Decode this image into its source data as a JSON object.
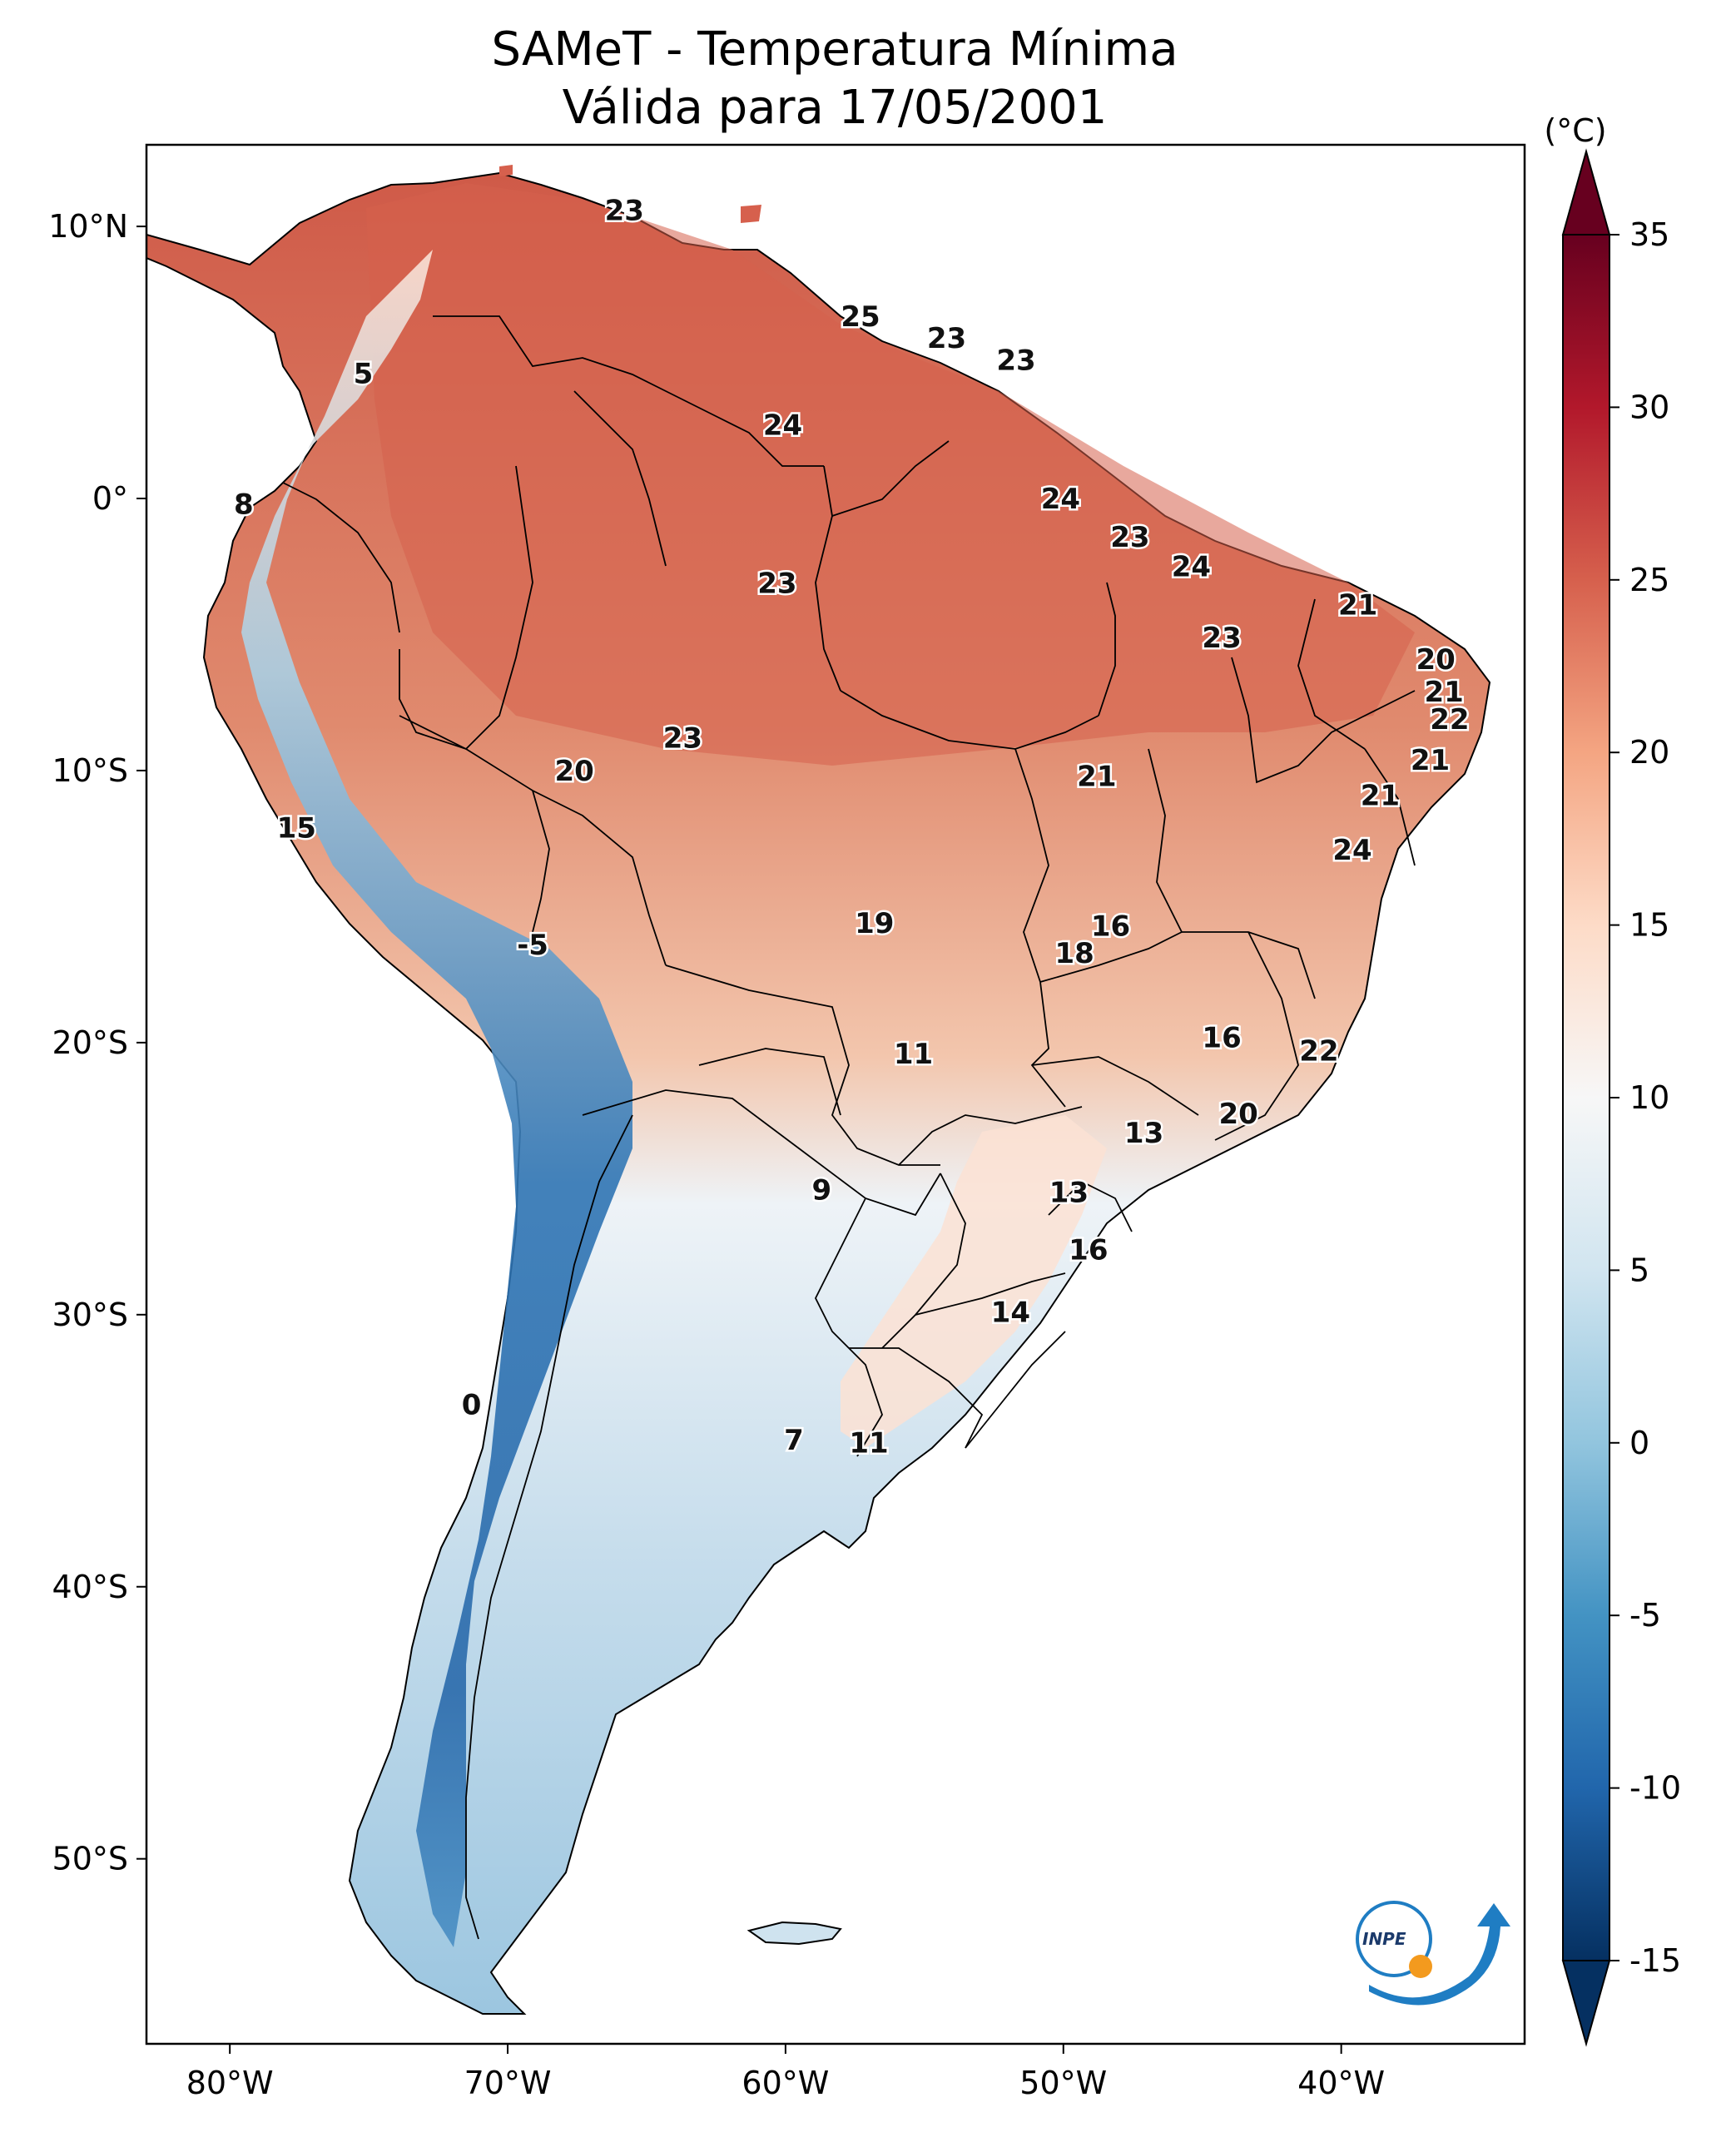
{
  "title": {
    "line1": "SAMeT - Temperatura Mínima",
    "line2": "Válida para 17/05/2001"
  },
  "colorbar": {
    "unit_label": "(°C)",
    "min": -15,
    "max": 35,
    "ticks": [
      -15,
      -10,
      -5,
      0,
      5,
      10,
      15,
      20,
      25,
      30,
      35
    ],
    "tick_labels": [
      "-15",
      "-10",
      "-5",
      "0",
      "5",
      "10",
      "15",
      "20",
      "25",
      "30",
      "35"
    ],
    "colors": [
      "#053061",
      "#2166ac",
      "#4393c3",
      "#92c5de",
      "#d1e5f0",
      "#f7f7f7",
      "#fddbc7",
      "#f4a582",
      "#d6604d",
      "#b2182b",
      "#67001f"
    ]
  },
  "map": {
    "lon_range": [
      -83,
      -33.4
    ],
    "lat_range": [
      -56.8,
      13
    ],
    "lon_ticks": [
      {
        "value": -80,
        "label": "80°W"
      },
      {
        "value": -70,
        "label": "70°W"
      },
      {
        "value": -60,
        "label": "60°W"
      },
      {
        "value": -50,
        "label": "50°W"
      },
      {
        "value": -40,
        "label": "40°W"
      }
    ],
    "lat_ticks": [
      {
        "value": 10,
        "label": "10°N"
      },
      {
        "value": 0,
        "label": "0°"
      },
      {
        "value": -10,
        "label": "10°S"
      },
      {
        "value": -20,
        "label": "20°S"
      },
      {
        "value": -30,
        "label": "30°S"
      },
      {
        "value": -40,
        "label": "40°S"
      },
      {
        "value": -50,
        "label": "50°S"
      }
    ]
  },
  "station_labels": [
    {
      "text": "23",
      "lon": -65.8,
      "lat": 10.6
    },
    {
      "text": "5",
      "lon": -75.2,
      "lat": 4.6
    },
    {
      "text": "8",
      "lon": -79.5,
      "lat": -0.2
    },
    {
      "text": "25",
      "lon": -57.3,
      "lat": 6.7
    },
    {
      "text": "23",
      "lon": -54.2,
      "lat": 5.9
    },
    {
      "text": "23",
      "lon": -51.7,
      "lat": 5.1
    },
    {
      "text": "24",
      "lon": -60.1,
      "lat": 2.7
    },
    {
      "text": "24",
      "lon": -50.1,
      "lat": 0
    },
    {
      "text": "23",
      "lon": -47.6,
      "lat": -1.4
    },
    {
      "text": "24",
      "lon": -45.4,
      "lat": -2.5
    },
    {
      "text": "23",
      "lon": -60.3,
      "lat": -3.1
    },
    {
      "text": "21",
      "lon": -39.4,
      "lat": -3.9
    },
    {
      "text": "23",
      "lon": -44.3,
      "lat": -5.1
    },
    {
      "text": "20",
      "lon": -36.6,
      "lat": -5.9
    },
    {
      "text": "21",
      "lon": -36.3,
      "lat": -7.1
    },
    {
      "text": "22",
      "lon": -36.1,
      "lat": -8.1
    },
    {
      "text": "23",
      "lon": -63.7,
      "lat": -8.8
    },
    {
      "text": "20",
      "lon": -67.6,
      "lat": -10
    },
    {
      "text": "21",
      "lon": -36.8,
      "lat": -9.6
    },
    {
      "text": "21",
      "lon": -48.8,
      "lat": -10.2
    },
    {
      "text": "21",
      "lon": -38.6,
      "lat": -10.9
    },
    {
      "text": "15",
      "lon": -77.6,
      "lat": -12.1
    },
    {
      "text": "24",
      "lon": -39.6,
      "lat": -12.9
    },
    {
      "text": "19",
      "lon": -56.8,
      "lat": -15.6
    },
    {
      "text": "16",
      "lon": -48.3,
      "lat": -15.7
    },
    {
      "text": "18",
      "lon": -49.6,
      "lat": -16.7
    },
    {
      "text": "-5",
      "lon": -69.1,
      "lat": -16.4
    },
    {
      "text": "16",
      "lon": -44.3,
      "lat": -19.8
    },
    {
      "text": "22",
      "lon": -40.8,
      "lat": -20.3
    },
    {
      "text": "11",
      "lon": -55.4,
      "lat": -20.4
    },
    {
      "text": "20",
      "lon": -43.7,
      "lat": -22.6
    },
    {
      "text": "13",
      "lon": -47.1,
      "lat": -23.3
    },
    {
      "text": "9",
      "lon": -58.7,
      "lat": -25.4
    },
    {
      "text": "13",
      "lon": -49.8,
      "lat": -25.5
    },
    {
      "text": "16",
      "lon": -49.1,
      "lat": -27.6
    },
    {
      "text": "14",
      "lon": -51.9,
      "lat": -29.9
    },
    {
      "text": "0",
      "lon": -71.3,
      "lat": -33.3
    },
    {
      "text": "7",
      "lon": -59.7,
      "lat": -34.6
    },
    {
      "text": "11",
      "lon": -57,
      "lat": -34.7
    }
  ],
  "logo": {
    "text": "INPE"
  }
}
